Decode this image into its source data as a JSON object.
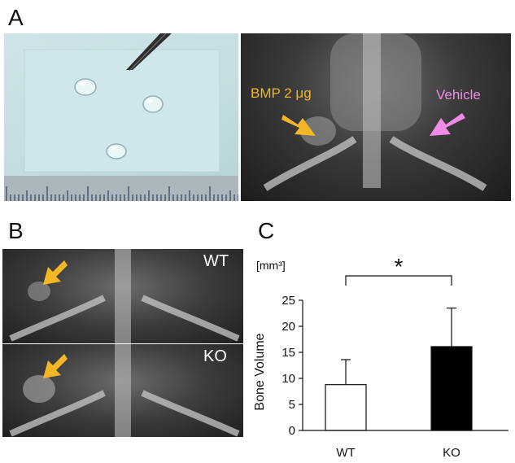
{
  "panels": {
    "a_label": "A",
    "b_label": "B",
    "c_label": "C"
  },
  "panel_a": {
    "left_photo": "gel-droplets-on-ruler",
    "right_photo": "mouse-xray-ventral",
    "bmp_label": "BMP 2 μg",
    "vehicle_label": "Vehicle",
    "bmp_arrow_color": "#f2b627",
    "vehicle_arrow_color": "#f08ce6"
  },
  "panel_b": {
    "wt_label": "WT",
    "ko_label": "KO",
    "arrow_color": "#f2b627"
  },
  "chart_data": {
    "type": "bar",
    "categories": [
      "WT",
      "KO"
    ],
    "values": [
      8.8,
      16.1
    ],
    "errors": [
      4.8,
      7.4
    ],
    "bar_colors": [
      "#ffffff",
      "#000000"
    ],
    "ylabel": "Bone Volume",
    "unit": "[mm³]",
    "ylim": [
      0,
      25
    ],
    "yticks": [
      "0",
      "5",
      "10",
      "15",
      "20",
      "25"
    ],
    "significance": "*"
  }
}
